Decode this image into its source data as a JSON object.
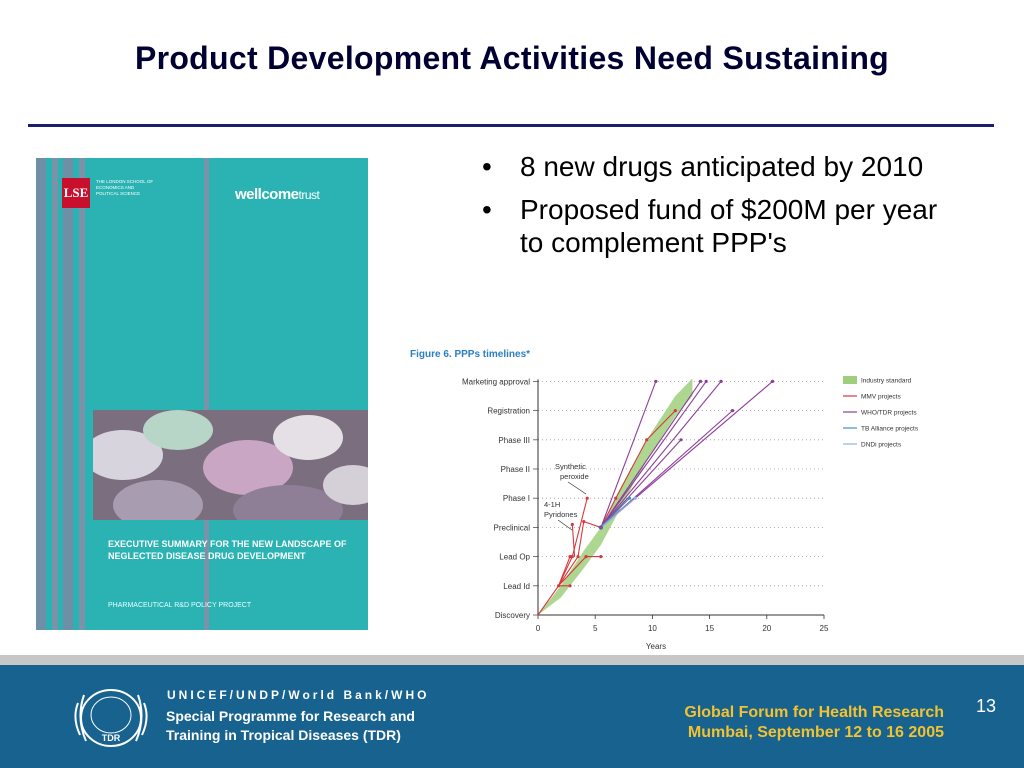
{
  "slide": {
    "title": "Product Development Activities Need Sustaining",
    "bullets": [
      "8 new drugs anticipated by 2010",
      "Proposed fund of $200M per year to complement PPP's"
    ],
    "page_number": "13"
  },
  "cover": {
    "lse_logo": "LSE",
    "lse_name": "The London School of Economics and Political Science",
    "wellcome": "wellcome",
    "trust": "trust",
    "exec_title": "EXECUTIVE SUMMARY FOR THE NEW LANDSCAPE OF NEGLECTED DISEASE DRUG DEVELOPMENT",
    "project": "PHARMACEUTICAL R&D POLICY PROJECT"
  },
  "chart_data": {
    "type": "line",
    "title": "Figure 6. PPPs timelines*",
    "xlabel": "Years",
    "ylabel": "",
    "xlim": [
      0,
      25
    ],
    "x_ticks": [
      0,
      5,
      10,
      15,
      20,
      25
    ],
    "categories": [
      "Discovery",
      "Lead Id",
      "Lead Op",
      "Preclinical",
      "Phase I",
      "Phase II",
      "Phase III",
      "Registration",
      "Marketing approval"
    ],
    "legend": [
      "Industry standard",
      "MMV projects",
      "WHO/TDR projects",
      "TB Alliance projects",
      "DNDi projects"
    ],
    "legend_position": "right",
    "annotations": [
      "Synthetic peroxide",
      "4-1H Pyridones"
    ],
    "colors": {
      "industry": "#9fcf7c",
      "mmv": "#d9373c",
      "who": "#8d3f9a",
      "tb": "#3f8fc7",
      "dndi": "#8eb3dd"
    },
    "series": [
      {
        "name": "Industry standard",
        "upper": [
          [
            0,
            0
          ],
          [
            2,
            1
          ],
          [
            4,
            2.2
          ],
          [
            5.5,
            3
          ],
          [
            7,
            4.2
          ],
          [
            8.5,
            5.3
          ],
          [
            10,
            6.3
          ],
          [
            12,
            7.5
          ],
          [
            13.5,
            8.1
          ]
        ],
        "lower": [
          [
            0,
            0
          ],
          [
            2,
            0.6
          ],
          [
            4,
            1.6
          ],
          [
            5.5,
            2.4
          ],
          [
            7,
            3.5
          ],
          [
            8.5,
            4.6
          ],
          [
            10,
            5.6
          ],
          [
            12,
            6.8
          ],
          [
            13.5,
            7.5
          ]
        ]
      },
      {
        "name": "MMV projects",
        "lines": [
          [
            [
              0,
              0
            ],
            [
              1.8,
              1
            ],
            [
              3.5,
              2
            ]
          ],
          [
            [
              1.8,
              1
            ],
            [
              2.8,
              1
            ]
          ],
          [
            [
              1.8,
              1
            ],
            [
              4.2,
              2
            ],
            [
              5.5,
              2
            ]
          ],
          [
            [
              1.8,
              1
            ],
            [
              3,
              2
            ],
            [
              4.3,
              4
            ]
          ],
          [
            [
              1.8,
              1
            ],
            [
              2.8,
              2
            ]
          ],
          [
            [
              3.5,
              2
            ],
            [
              4,
              3.2
            ],
            [
              5.5,
              3
            ],
            [
              6.8,
              4
            ],
            [
              9.5,
              6
            ],
            [
              12,
              7
            ]
          ],
          [
            [
              3.2,
              2
            ],
            [
              3,
              3.1
            ]
          ]
        ]
      },
      {
        "name": "WHO/TDR projects",
        "lines": [
          [
            [
              5.5,
              3
            ],
            [
              10.3,
              8
            ]
          ],
          [
            [
              5.5,
              3
            ],
            [
              14.2,
              8
            ]
          ],
          [
            [
              5.5,
              3
            ],
            [
              16,
              8
            ]
          ],
          [
            [
              5.5,
              3
            ],
            [
              20.5,
              8
            ]
          ],
          [
            [
              5.5,
              3
            ],
            [
              17,
              7
            ]
          ],
          [
            [
              5.5,
              3
            ],
            [
              12.5,
              6
            ]
          ],
          [
            [
              5.5,
              3
            ],
            [
              14.7,
              8
            ]
          ]
        ]
      },
      {
        "name": "TB Alliance projects",
        "lines": [
          [
            [
              5.5,
              3
            ],
            [
              8,
              4
            ]
          ]
        ]
      },
      {
        "name": "DNDi projects",
        "lines": [
          [
            [
              5.5,
              3
            ],
            [
              8.5,
              4
            ]
          ]
        ]
      }
    ]
  },
  "footer": {
    "org_line1": "UNICEF/UNDP/World Bank/WHO",
    "org_line2": "Special Programme for Research and",
    "org_line3": "Training in Tropical Diseases (TDR)",
    "emblem_label": "TDR",
    "forum_line1": "Global Forum for Health Research",
    "forum_line2": "Mumbai, September 12 to 16 2005"
  }
}
